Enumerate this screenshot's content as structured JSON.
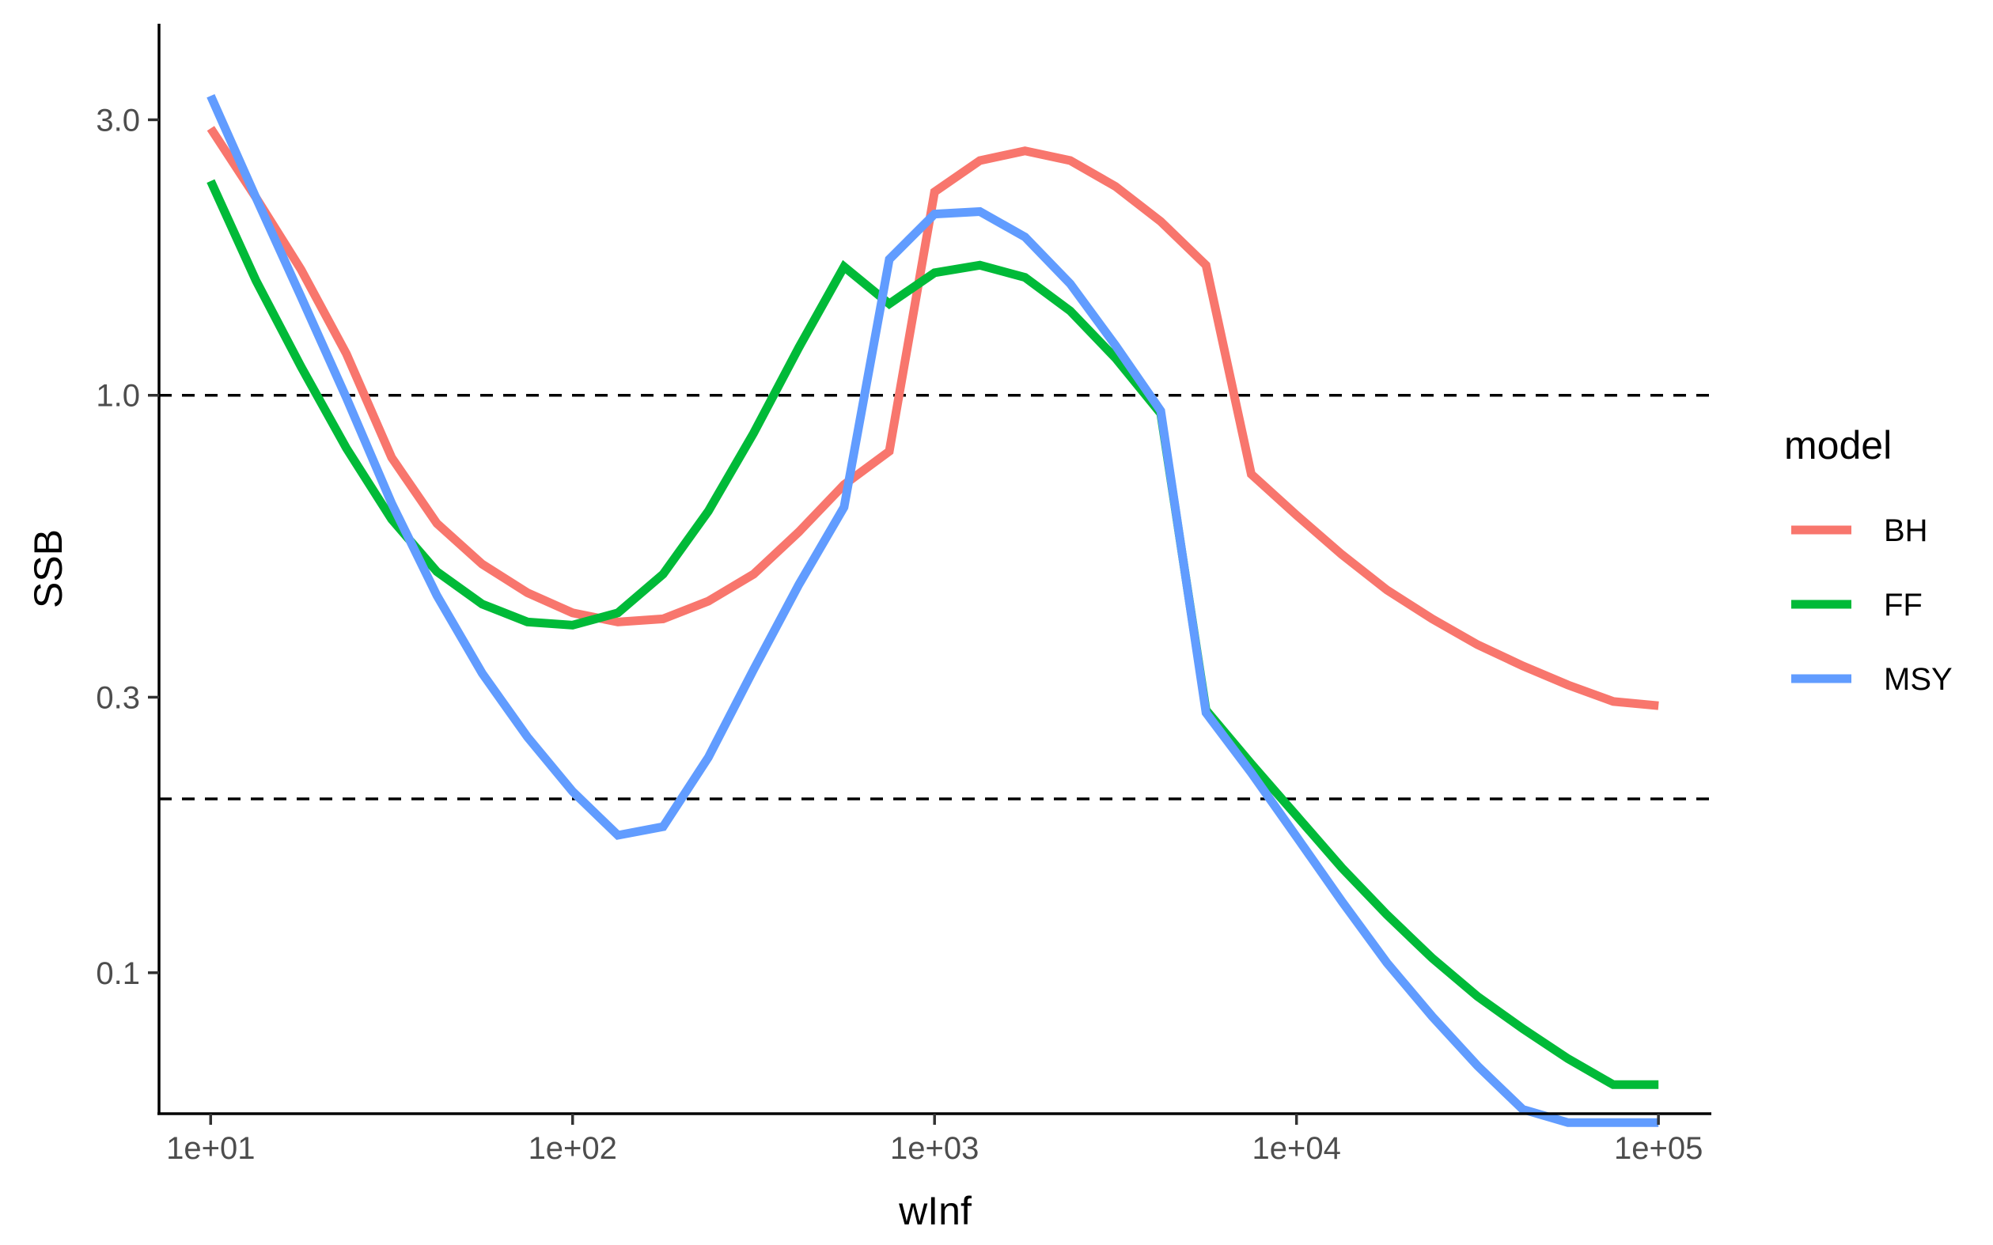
{
  "chart_data": {
    "type": "line",
    "title": "",
    "xlabel": "wInf",
    "ylabel": "SSB",
    "x_scale": "log10",
    "y_scale": "log10",
    "xlim": [
      7.2,
      140000
    ],
    "ylim": [
      0.057,
      4.4
    ],
    "x_ticks": [
      10,
      100,
      1000,
      10000,
      100000
    ],
    "x_tick_labels": [
      "1e+01",
      "1e+02",
      "1e+03",
      "1e+04",
      "1e+05"
    ],
    "y_ticks": [
      0.1,
      0.3,
      1.0,
      3.0
    ],
    "y_tick_labels": [
      "0.1",
      "0.3",
      "1.0",
      "3.0"
    ],
    "grid": false,
    "legend_title": "model",
    "legend_position": "right",
    "reference_lines": [
      {
        "axis": "y",
        "value": 1.0,
        "style": "dashed"
      },
      {
        "axis": "y",
        "value": 0.2,
        "style": "dashed"
      }
    ],
    "x": [
      10,
      13.34,
      17.78,
      23.71,
      31.62,
      42.17,
      56.23,
      74.99,
      100,
      133.4,
      177.8,
      237.1,
      316.2,
      421.7,
      562.3,
      749.9,
      1000,
      1334,
      1778,
      2371,
      3162,
      4217,
      5623,
      7499,
      10000,
      13340,
      17780,
      23710,
      31620,
      42170,
      56230,
      74990,
      100000
    ],
    "series": [
      {
        "name": "BH",
        "color": "#F8766D",
        "values": [
          2.9,
          2.2,
          1.65,
          1.18,
          0.78,
          0.6,
          0.51,
          0.455,
          0.42,
          0.405,
          0.41,
          0.44,
          0.49,
          0.58,
          0.7,
          0.8,
          2.25,
          2.55,
          2.65,
          2.55,
          2.3,
          2.0,
          1.68,
          0.73,
          0.62,
          0.53,
          0.46,
          0.41,
          0.37,
          0.34,
          0.315,
          0.295,
          0.29
        ]
      },
      {
        "name": "FF",
        "color": "#00BA38",
        "values": [
          2.35,
          1.58,
          1.12,
          0.81,
          0.61,
          0.495,
          0.435,
          0.405,
          0.4,
          0.42,
          0.49,
          0.63,
          0.86,
          1.21,
          1.67,
          1.44,
          1.63,
          1.68,
          1.6,
          1.4,
          1.16,
          0.93,
          0.285,
          0.23,
          0.187,
          0.152,
          0.126,
          0.106,
          0.091,
          0.08,
          0.071,
          0.064,
          0.064
        ]
      },
      {
        "name": "MSY",
        "color": "#619CFF",
        "values": [
          3.3,
          2.2,
          1.48,
          0.99,
          0.65,
          0.45,
          0.33,
          0.256,
          0.206,
          0.173,
          0.179,
          0.236,
          0.335,
          0.47,
          0.64,
          1.72,
          2.06,
          2.08,
          1.88,
          1.56,
          1.22,
          0.94,
          0.282,
          0.222,
          0.172,
          0.133,
          0.104,
          0.084,
          0.069,
          0.058,
          0.055,
          0.055,
          0.055
        ]
      }
    ]
  }
}
